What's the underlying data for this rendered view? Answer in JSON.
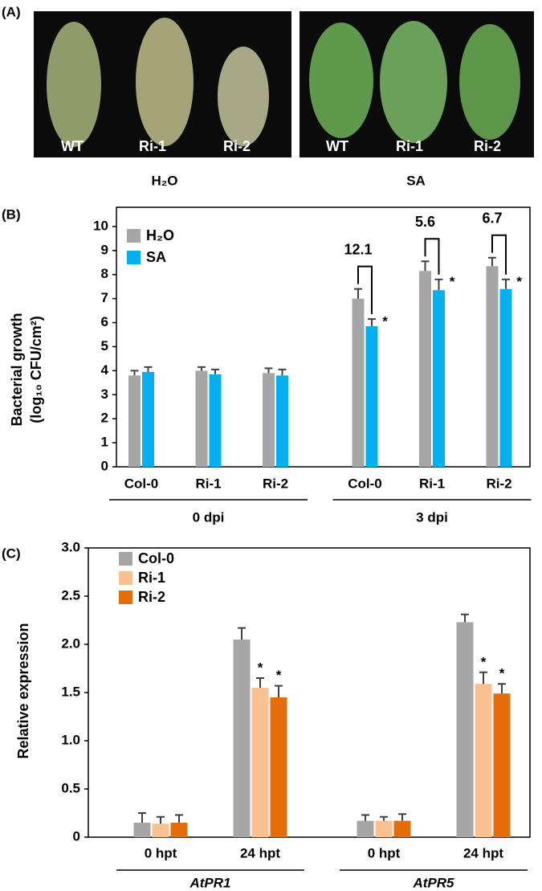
{
  "panel_a": {
    "panel_label": "(A)",
    "photos": [
      {
        "treatment": "H₂O",
        "genotypes": [
          "WT",
          "Ri-1",
          "Ri-2"
        ]
      },
      {
        "treatment": "SA",
        "genotypes": [
          "WT",
          "Ri-1",
          "Ri-2"
        ]
      }
    ]
  },
  "chart_data": [
    {
      "type": "bar",
      "panel_label": "(B)",
      "y_label": [
        "Bacterial growth",
        "(log₁₀ CFU/cm²)"
      ],
      "categories": [
        "Col-0",
        "Ri-1",
        "Ri-2",
        "Col-0",
        "Ri-1",
        "Ri-2"
      ],
      "group_labels": [
        "0 dpi",
        "3 dpi"
      ],
      "series": [
        {
          "name": "H₂O",
          "color": "#a6a6a6",
          "values": [
            3.8,
            4.0,
            3.9,
            7.0,
            8.15,
            8.35
          ],
          "errors": [
            0.2,
            0.15,
            0.2,
            0.4,
            0.4,
            0.35
          ],
          "asterisks": [
            null,
            null,
            null,
            null,
            null,
            null
          ]
        },
        {
          "name": "SA",
          "color": "#00b0f0",
          "values": [
            3.95,
            3.85,
            3.8,
            5.85,
            7.35,
            7.4
          ],
          "errors": [
            0.2,
            0.2,
            0.25,
            0.3,
            0.45,
            0.4
          ],
          "asterisks": [
            null,
            null,
            null,
            "*",
            "*",
            "*"
          ]
        }
      ],
      "fold_labels": [
        null,
        null,
        null,
        "12.1",
        "5.6",
        "6.7"
      ],
      "ylim": [
        0,
        10.8
      ],
      "yticks": [
        0,
        1,
        2,
        3,
        4,
        5,
        6,
        7,
        8,
        9,
        10
      ],
      "legend": "upper left"
    },
    {
      "type": "bar",
      "panel_label": "(C)",
      "y_label": [
        "Relative expression"
      ],
      "categories": [
        "0 hpt",
        "24 hpt",
        "0 hpt",
        "24 hpt"
      ],
      "group_labels": [
        "AtPR1",
        "AtPR5"
      ],
      "series": [
        {
          "name": "Col-0",
          "color": "#a6a6a6",
          "values": [
            0.15,
            2.05,
            0.17,
            2.23
          ],
          "errors": [
            0.1,
            0.12,
            0.06,
            0.08
          ],
          "asterisks": [
            null,
            null,
            null,
            null
          ]
        },
        {
          "name": "Ri-1",
          "color": "#fac090",
          "values": [
            0.14,
            1.55,
            0.17,
            1.59
          ],
          "errors": [
            0.07,
            0.1,
            0.04,
            0.12
          ],
          "asterisks": [
            null,
            "*",
            null,
            "*"
          ]
        },
        {
          "name": "Ri-2",
          "color": "#e46c0a",
          "values": [
            0.15,
            1.45,
            0.17,
            1.49
          ],
          "errors": [
            0.08,
            0.12,
            0.07,
            0.1
          ],
          "asterisks": [
            null,
            "*",
            null,
            "*"
          ]
        }
      ],
      "ylim": [
        0,
        3
      ],
      "yticks": [
        0,
        0.5,
        {
          "value": 1,
          "label": "1.0"
        },
        1.5,
        {
          "value": 2,
          "label": "2.0"
        },
        2.5,
        {
          "value": 3,
          "label": "3.0"
        }
      ],
      "legend": "upper left"
    }
  ]
}
